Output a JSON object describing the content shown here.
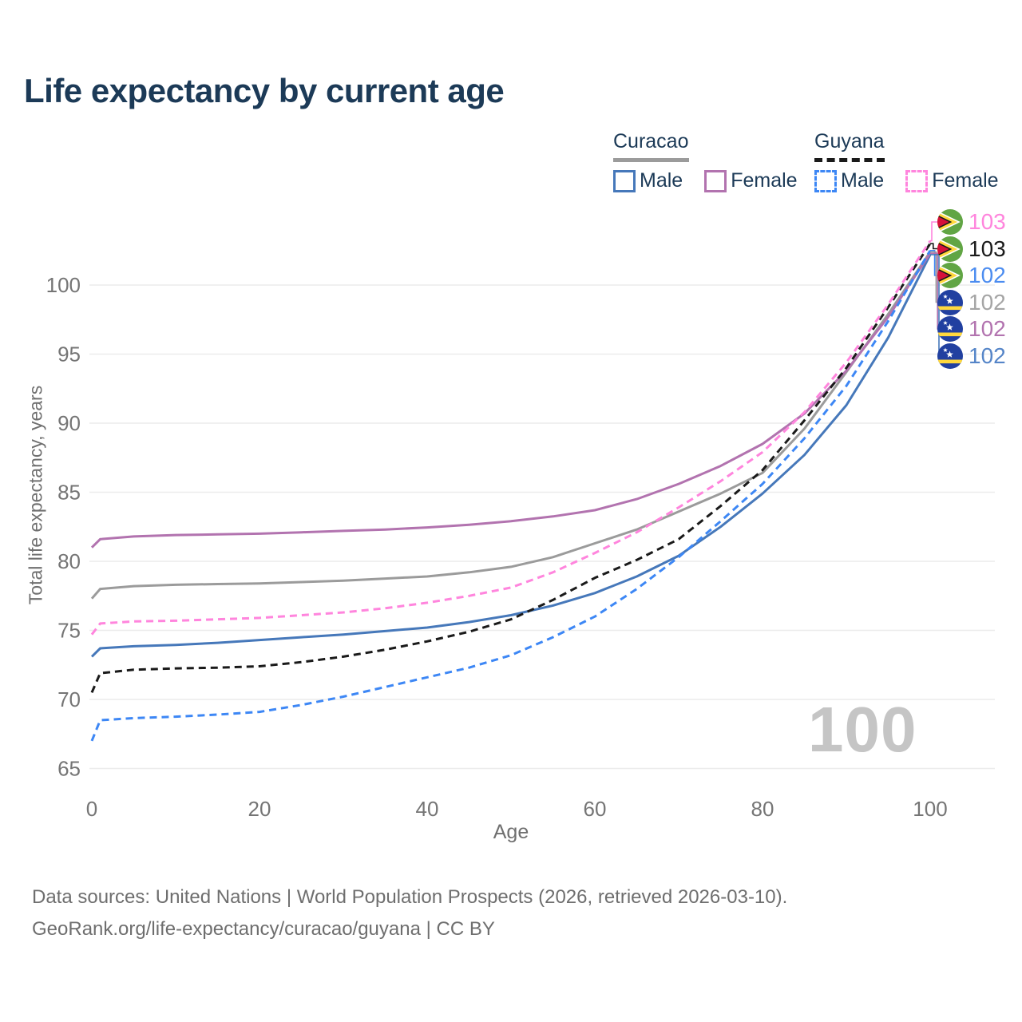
{
  "title": "Life expectancy by current age",
  "legend": {
    "groups": [
      {
        "name": "Curacao",
        "series": "Curacao",
        "items": [
          {
            "label": "Male",
            "series": "Curacao Male"
          },
          {
            "label": "Female",
            "series": "Curacao Female"
          }
        ]
      },
      {
        "name": "Guyana",
        "series": "Guyana",
        "items": [
          {
            "label": "Male",
            "series": "Guyana Male"
          },
          {
            "label": "Female",
            "series": "Guyana Female"
          }
        ]
      }
    ]
  },
  "chart_data": {
    "type": "line",
    "title": "Life expectancy by current age",
    "xlabel": "Age",
    "ylabel": "Total life expectancy, years",
    "xlim": [
      0,
      100
    ],
    "ylim": [
      64,
      104
    ],
    "grid": "horizontal-only",
    "x_ticks": [
      "0",
      "20",
      "40",
      "60",
      "80",
      "100"
    ],
    "y_ticks": [
      "65",
      "70",
      "75",
      "80",
      "85",
      "90",
      "95",
      "100"
    ],
    "x": [
      0,
      1,
      5,
      10,
      15,
      20,
      25,
      30,
      35,
      40,
      45,
      50,
      55,
      60,
      65,
      70,
      75,
      80,
      85,
      90,
      95,
      100
    ],
    "series": [
      {
        "name": "Curacao",
        "country": "Curacao",
        "color": "#9b9b9b",
        "dashed": false,
        "values": [
          77.3,
          78.0,
          78.2,
          78.3,
          78.35,
          78.4,
          78.5,
          78.6,
          78.75,
          78.9,
          79.2,
          79.6,
          80.3,
          81.3,
          82.3,
          83.6,
          84.9,
          86.4,
          89.6,
          93.7,
          97.9,
          102.4
        ]
      },
      {
        "name": "Curacao Male",
        "country": "Curacao",
        "color": "#4678ba",
        "dashed": false,
        "values": [
          73.1,
          73.7,
          73.85,
          73.95,
          74.1,
          74.3,
          74.5,
          74.7,
          74.95,
          75.2,
          75.6,
          76.1,
          76.8,
          77.7,
          78.9,
          80.4,
          82.5,
          84.9,
          87.7,
          91.3,
          96.2,
          102.2
        ]
      },
      {
        "name": "Curacao Female",
        "country": "Curacao",
        "color": "#b273af",
        "dashed": false,
        "values": [
          81.0,
          81.6,
          81.8,
          81.9,
          81.95,
          82.0,
          82.1,
          82.2,
          82.3,
          82.45,
          82.65,
          82.9,
          83.25,
          83.7,
          84.5,
          85.6,
          86.9,
          88.5,
          90.7,
          93.8,
          97.7,
          102.3
        ]
      },
      {
        "name": "Guyana",
        "country": "Guyana",
        "color": "#1a1a1a",
        "dashed": true,
        "values": [
          70.5,
          71.9,
          72.15,
          72.25,
          72.3,
          72.4,
          72.7,
          73.1,
          73.6,
          74.2,
          74.9,
          75.8,
          77.2,
          78.8,
          80.1,
          81.6,
          84.0,
          86.6,
          90.2,
          94.0,
          98.4,
          103.0
        ]
      },
      {
        "name": "Guyana Male",
        "country": "Guyana",
        "color": "#3d87f5",
        "dashed": true,
        "values": [
          67.0,
          68.5,
          68.65,
          68.75,
          68.9,
          69.1,
          69.6,
          70.2,
          70.9,
          71.6,
          72.3,
          73.2,
          74.5,
          76.0,
          78.0,
          80.3,
          82.9,
          85.6,
          88.9,
          92.7,
          97.4,
          102.5
        ]
      },
      {
        "name": "Guyana Female",
        "country": "Guyana",
        "color": "#ff85dd",
        "dashed": true,
        "values": [
          74.7,
          75.5,
          75.65,
          75.7,
          75.8,
          75.9,
          76.1,
          76.3,
          76.6,
          77.0,
          77.5,
          78.1,
          79.2,
          80.6,
          82.1,
          83.9,
          85.8,
          87.9,
          90.8,
          94.4,
          98.6,
          103.2
        ]
      }
    ],
    "end_labels": [
      {
        "value": "103",
        "series": "Guyana Female",
        "flag": "guyana",
        "label_color": "#ff85dd"
      },
      {
        "value": "103",
        "series": "Guyana",
        "flag": "guyana",
        "label_color": "#1a1a1a"
      },
      {
        "value": "102",
        "series": "Guyana Male",
        "flag": "guyana",
        "label_color": "#4b8cf0"
      },
      {
        "value": "102",
        "series": "Curacao",
        "flag": "curacao",
        "label_color": "#a5a5a5"
      },
      {
        "value": "102",
        "series": "Curacao Female",
        "flag": "curacao",
        "label_color": "#b273af"
      },
      {
        "value": "102",
        "series": "Curacao Male",
        "flag": "curacao",
        "label_color": "#5585c8"
      }
    ],
    "legend_position": "top-right"
  },
  "watermark": "100",
  "colors": {
    "title": "#1c3a57",
    "axis_text": "#757575",
    "gridline": "#ececec",
    "watermark": "#c5c5c5",
    "footer_text": "#6e6e6e"
  },
  "footer": {
    "line1": "Data sources: United Nations | World Population Prospects (2026, retrieved 2026-03-10).",
    "line2": "GeoRank.org/life-expectancy/curacao/guyana | CC BY"
  }
}
